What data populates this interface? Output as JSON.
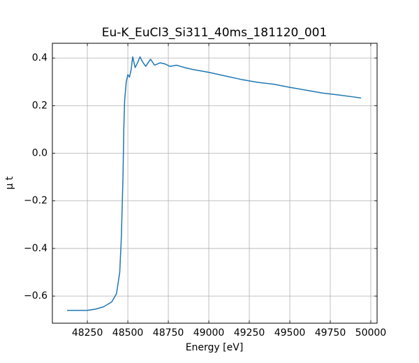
{
  "chart_data": {
    "type": "line",
    "title": "Eu-K_EuCl3_Si311_40ms_181120_001",
    "x_label": "Energy [eV]",
    "y_label": "μ t",
    "x": [
      48125,
      48200,
      48250,
      48300,
      48350,
      48400,
      48430,
      48450,
      48460,
      48470,
      48475,
      48480,
      48490,
      48500,
      48510,
      48520,
      48530,
      48545,
      48560,
      48575,
      48590,
      48610,
      48640,
      48665,
      48700,
      48730,
      48760,
      48800,
      48850,
      48900,
      49000,
      49100,
      49200,
      49300,
      49400,
      49500,
      49600,
      49700,
      49800,
      49900,
      49940
    ],
    "series": [
      {
        "name": "mu",
        "color": "#1f77b4",
        "values": [
          -0.66,
          -0.66,
          -0.66,
          -0.655,
          -0.645,
          -0.625,
          -0.59,
          -0.5,
          -0.35,
          -0.1,
          0.1,
          0.22,
          0.3,
          0.33,
          0.32,
          0.35,
          0.405,
          0.36,
          0.38,
          0.405,
          0.385,
          0.365,
          0.395,
          0.37,
          0.38,
          0.375,
          0.365,
          0.37,
          0.36,
          0.352,
          0.34,
          0.325,
          0.31,
          0.298,
          0.29,
          0.277,
          0.265,
          0.253,
          0.245,
          0.236,
          0.232
        ]
      }
    ],
    "xlim": [
      48034,
      50039
    ],
    "ylim": [
      -0.714,
      0.462
    ],
    "xticks": [
      48250,
      48500,
      48750,
      49000,
      49250,
      49500,
      49750,
      50000
    ],
    "yticks": [
      {
        "value": -0.6,
        "label": "−0.6"
      },
      {
        "value": -0.4,
        "label": "−0.4"
      },
      {
        "value": -0.2,
        "label": "−0.2"
      },
      {
        "value": 0.0,
        "label": "0.0"
      },
      0.2,
      0.4
    ],
    "grid": true
  }
}
